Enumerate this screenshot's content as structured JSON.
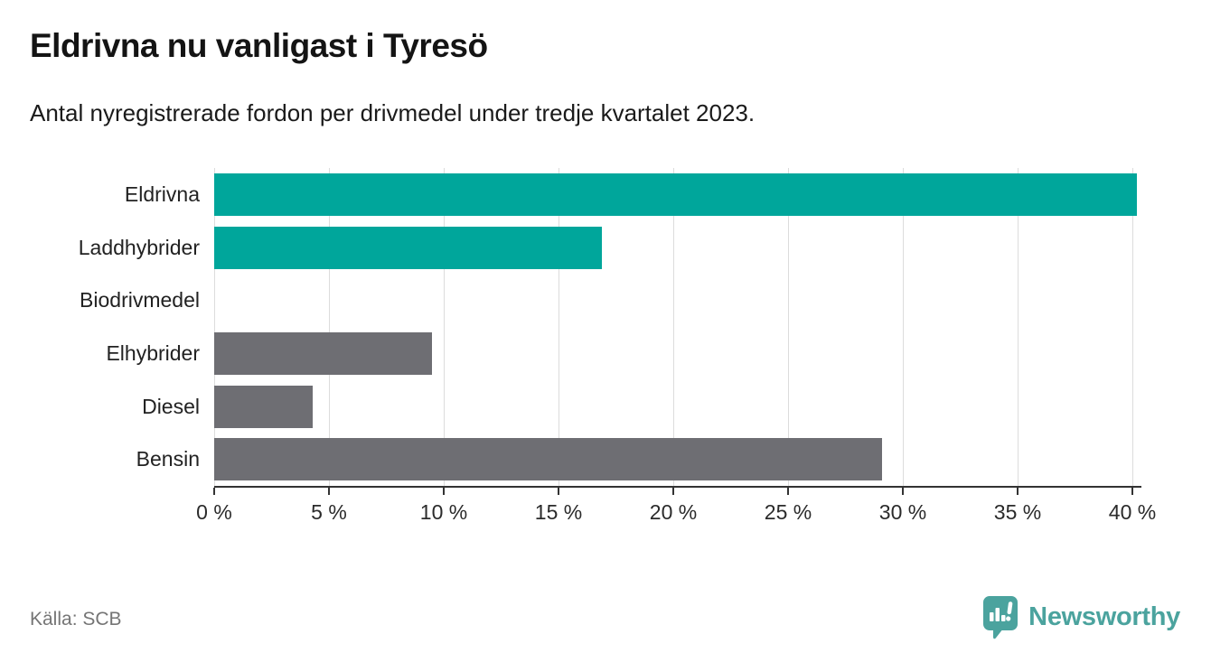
{
  "header": {
    "title": "Eldrivna nu vanligast i Tyresö",
    "subtitle": "Antal nyregistrerade fordon per drivmedel under tredje kvartalet 2023."
  },
  "footer": {
    "source": "Källa: SCB",
    "brand_name": "Newsworthy"
  },
  "colors": {
    "highlight_bar": "#00a69b",
    "default_bar": "#6e6e73",
    "gridline": "#dcdcdc",
    "axis": "#333333",
    "brand": "#4ba39e"
  },
  "chart_data": {
    "type": "bar",
    "orientation": "horizontal",
    "title": "Eldrivna nu vanligast i Tyresö",
    "subtitle": "Antal nyregistrerade fordon per drivmedel under tredje kvartalet 2023.",
    "categories": [
      "Eldrivna",
      "Laddhybrider",
      "Biodrivmedel",
      "Elhybrider",
      "Diesel",
      "Bensin"
    ],
    "values": [
      40.2,
      16.9,
      0,
      9.5,
      4.3,
      29.1
    ],
    "bar_colors": [
      "#00a69b",
      "#00a69b",
      "#6e6e73",
      "#6e6e73",
      "#6e6e73",
      "#6e6e73"
    ],
    "unit": "%",
    "xlabel": "",
    "ylabel": "",
    "xlim": [
      0,
      40
    ],
    "x_tick_values": [
      0,
      5,
      10,
      15,
      20,
      25,
      30,
      35,
      40
    ],
    "x_tick_labels": [
      "0 %",
      "5 %",
      "10 %",
      "15 %",
      "20 %",
      "25 %",
      "30 %",
      "35 %",
      "40 %"
    ],
    "grid": "vertical",
    "legend": "none",
    "source": "Källa: SCB"
  }
}
